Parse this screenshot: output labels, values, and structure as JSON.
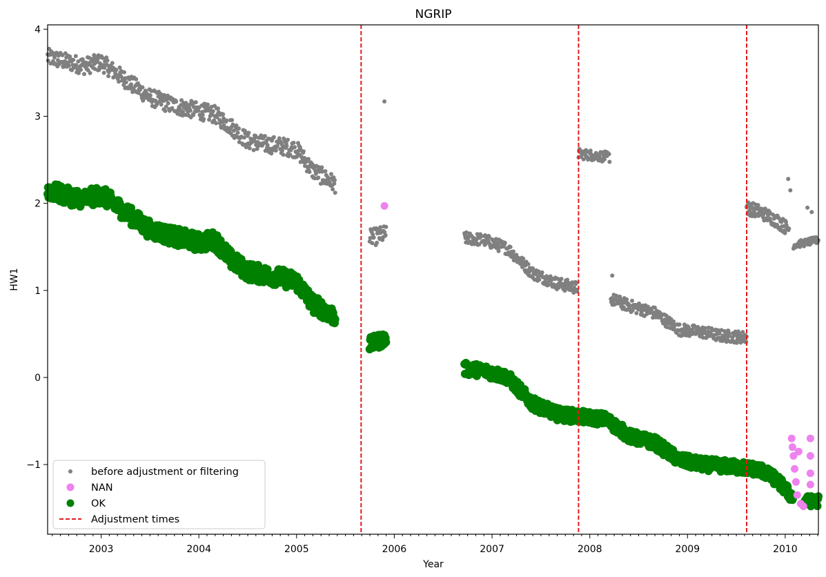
{
  "chart_data": {
    "type": "scatter",
    "title": "NGRIP",
    "xlabel": "Year",
    "ylabel": "HW1",
    "x_axis_type": "date",
    "xlim": [
      "2002-06-15",
      "2010-05-05"
    ],
    "ylim": [
      -1.8,
      4.05
    ],
    "x_ticks": [
      "2003",
      "2004",
      "2005",
      "2006",
      "2007",
      "2008",
      "2009",
      "2010"
    ],
    "y_ticks": [
      "−1",
      "0",
      "1",
      "2",
      "3",
      "4"
    ],
    "grid": false,
    "legend_position": "lower-left",
    "colors": {
      "before": "#808080",
      "nan": "#ee82ee",
      "ok": "#008000",
      "adjustment": "#e41a1c"
    },
    "series": [
      {
        "name": "before adjustment or filtering",
        "marker": "small-dot",
        "color": "#808080",
        "segments": [
          {
            "x": [
              "2002-06-15",
              "2002-09-01",
              "2002-11-01",
              "2003-01-01",
              "2003-04-01",
              "2003-07-01",
              "2003-10-01",
              "2004-01-01",
              "2004-03-01",
              "2004-05-01",
              "2004-07-01",
              "2004-09-01",
              "2004-11-01",
              "2005-01-01",
              "2005-03-01",
              "2005-05-25"
            ],
            "y": [
              3.68,
              3.62,
              3.58,
              3.62,
              3.42,
              3.22,
              3.12,
              3.06,
              3.02,
              2.88,
              2.72,
              2.68,
              2.66,
              2.62,
              2.38,
              2.22
            ],
            "spread": 0.1
          },
          {
            "x": [
              "2005-10-01",
              "2005-12-01"
            ],
            "y": [
              1.6,
              1.65
            ],
            "spread": 0.1
          },
          {
            "x": [
              "2006-09-20",
              "2006-12-01",
              "2007-03-01",
              "2007-06-01",
              "2007-09-01",
              "2007-11-15"
            ],
            "y": [
              1.6,
              1.58,
              1.48,
              1.2,
              1.08,
              1.03
            ],
            "spread": 0.07
          },
          {
            "x": [
              "2007-11-20",
              "2008-03-15"
            ],
            "y": [
              2.57,
              2.53
            ],
            "spread": 0.06
          },
          {
            "x": [
              "2008-03-20",
              "2008-06-01",
              "2008-09-01",
              "2008-12-01",
              "2009-03-01",
              "2009-05-01",
              "2009-08-10"
            ],
            "y": [
              0.9,
              0.82,
              0.74,
              0.55,
              0.52,
              0.48,
              0.46
            ],
            "spread": 0.07
          },
          {
            "x": [
              "2009-08-10",
              "2009-10-01",
              "2009-12-01",
              "2010-01-15"
            ],
            "y": [
              1.95,
              1.9,
              1.8,
              1.7
            ],
            "spread": 0.08
          },
          {
            "x": [
              "2010-02-01",
              "2010-05-05"
            ],
            "y": [
              1.52,
              1.58
            ],
            "spread": 0.04
          }
        ],
        "outliers": [
          {
            "x": "2005-11-25",
            "y": 3.17
          },
          {
            "x": "2008-03-25",
            "y": 1.17
          },
          {
            "x": "2010-01-12",
            "y": 2.28
          },
          {
            "x": "2010-01-20",
            "y": 2.15
          },
          {
            "x": "2010-03-25",
            "y": 1.95
          },
          {
            "x": "2010-04-10",
            "y": 1.9
          }
        ]
      },
      {
        "name": "NAN",
        "marker": "large-dot",
        "color": "#ee82ee",
        "points": [
          {
            "x": "2005-11-25",
            "y": 1.97
          },
          {
            "x": "2010-01-25",
            "y": -0.7
          },
          {
            "x": "2010-01-28",
            "y": -0.8
          },
          {
            "x": "2010-02-01",
            "y": -0.9
          },
          {
            "x": "2010-02-05",
            "y": -1.05
          },
          {
            "x": "2010-02-10",
            "y": -1.2
          },
          {
            "x": "2010-02-15",
            "y": -1.35
          },
          {
            "x": "2010-02-20",
            "y": -0.85
          },
          {
            "x": "2010-02-28",
            "y": -1.45
          },
          {
            "x": "2010-03-10",
            "y": -1.48
          },
          {
            "x": "2010-04-05",
            "y": -0.7
          },
          {
            "x": "2010-04-05",
            "y": -0.9
          },
          {
            "x": "2010-04-05",
            "y": -1.1
          },
          {
            "x": "2010-04-05",
            "y": -1.23
          }
        ]
      },
      {
        "name": "OK",
        "marker": "large-dot",
        "color": "#008000",
        "segments": [
          {
            "x": [
              "2002-06-15",
              "2002-09-01",
              "2002-11-01",
              "2003-01-01",
              "2003-04-01",
              "2003-07-01",
              "2003-10-01",
              "2004-01-01",
              "2004-03-01",
              "2004-05-01",
              "2004-07-01",
              "2004-09-01",
              "2004-11-01",
              "2005-01-01",
              "2005-03-01",
              "2005-05-25"
            ],
            "y": [
              2.15,
              2.08,
              2.05,
              2.1,
              1.9,
              1.7,
              1.62,
              1.55,
              1.58,
              1.35,
              1.22,
              1.18,
              1.15,
              1.1,
              0.85,
              0.7
            ],
            "spread": 0.1
          },
          {
            "x": [
              "2005-10-01",
              "2005-12-01"
            ],
            "y": [
              0.38,
              0.45
            ],
            "spread": 0.08
          },
          {
            "x": [
              "2006-09-20",
              "2006-12-01",
              "2007-03-01",
              "2007-06-01",
              "2007-09-01",
              "2007-11-20",
              "2008-03-01",
              "2008-06-01",
              "2008-09-01",
              "2008-12-01",
              "2009-03-01",
              "2009-06-01",
              "2009-08-10",
              "2009-10-01",
              "2009-12-01",
              "2010-01-30"
            ],
            "y": [
              0.1,
              0.08,
              0.0,
              -0.3,
              -0.42,
              -0.45,
              -0.48,
              -0.68,
              -0.75,
              -0.95,
              -1.0,
              -1.02,
              -1.04,
              -1.06,
              -1.18,
              -1.38
            ],
            "spread": 0.07
          },
          {
            "x": [
              "2010-03-15",
              "2010-05-05"
            ],
            "y": [
              -1.42,
              -1.42
            ],
            "spread": 0.06
          }
        ]
      }
    ],
    "adjustment_times": {
      "name": "Adjustment times",
      "style": "dashed",
      "x": [
        "2005-08-30",
        "2007-11-20",
        "2009-08-10"
      ]
    }
  }
}
